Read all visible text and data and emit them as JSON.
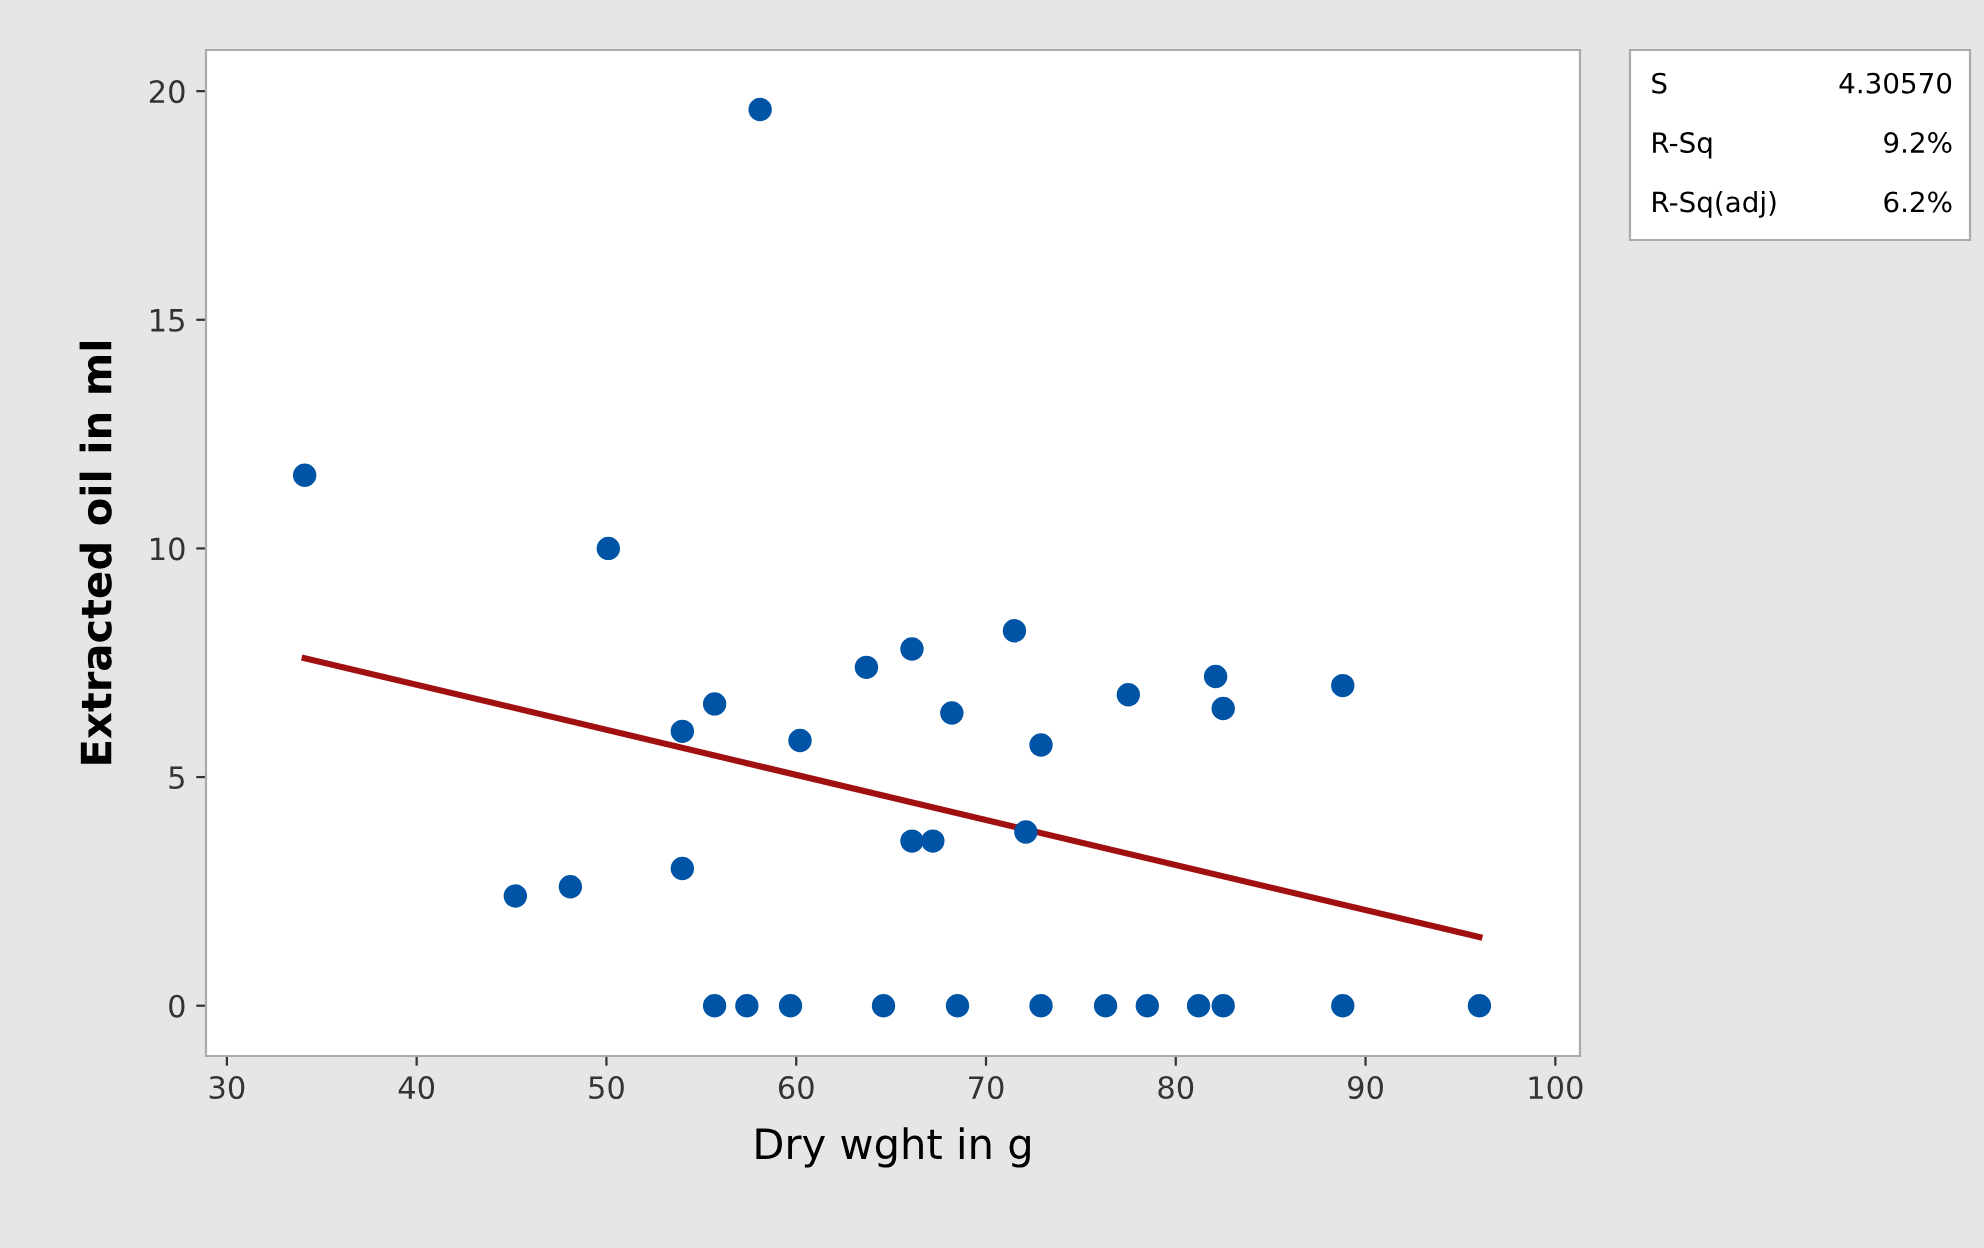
{
  "chart_data": {
    "type": "scatter",
    "xlabel": "Dry wght in g",
    "ylabel": "Extracted oil in ml",
    "xlim": [
      28.9,
      101.3
    ],
    "xticks": [
      30,
      40,
      50,
      60,
      70,
      80,
      90,
      100
    ],
    "ylim": [
      -1.1,
      20.9
    ],
    "yticks": [
      0,
      5,
      10,
      15,
      20
    ],
    "grid": false,
    "series": [
      {
        "marker": "circle",
        "color": "#0054a6",
        "x": [
          34.1,
          58.1,
          50.1,
          45.2,
          48.1,
          54.0,
          54.0,
          55.7,
          60.2,
          63.7,
          66.1,
          68.2,
          71.5,
          72.9,
          66.1,
          67.2,
          72.1,
          77.5,
          82.1,
          82.5,
          88.8,
          55.7,
          57.4,
          59.7,
          64.6,
          68.5,
          72.9,
          76.3,
          78.5,
          81.2,
          82.5,
          88.8,
          96.0
        ],
        "values": [
          11.6,
          19.6,
          10.0,
          2.4,
          2.6,
          3.0,
          6.0,
          6.6,
          5.8,
          7.4,
          7.8,
          6.4,
          8.2,
          5.7,
          3.6,
          3.6,
          3.8,
          6.8,
          7.2,
          6.5,
          7.0,
          0,
          0,
          0,
          0,
          0,
          0,
          0,
          0,
          0,
          0,
          0,
          0
        ]
      },
      {
        "type": "line",
        "color": "#a01010",
        "x": [
          34.1,
          96.0
        ],
        "values": [
          7.6,
          1.5
        ]
      }
    ],
    "annotations": [
      "S",
      "4.30570",
      "R-Sq",
      "9.2%",
      "R-Sq(adj)",
      "6.2%"
    ]
  }
}
